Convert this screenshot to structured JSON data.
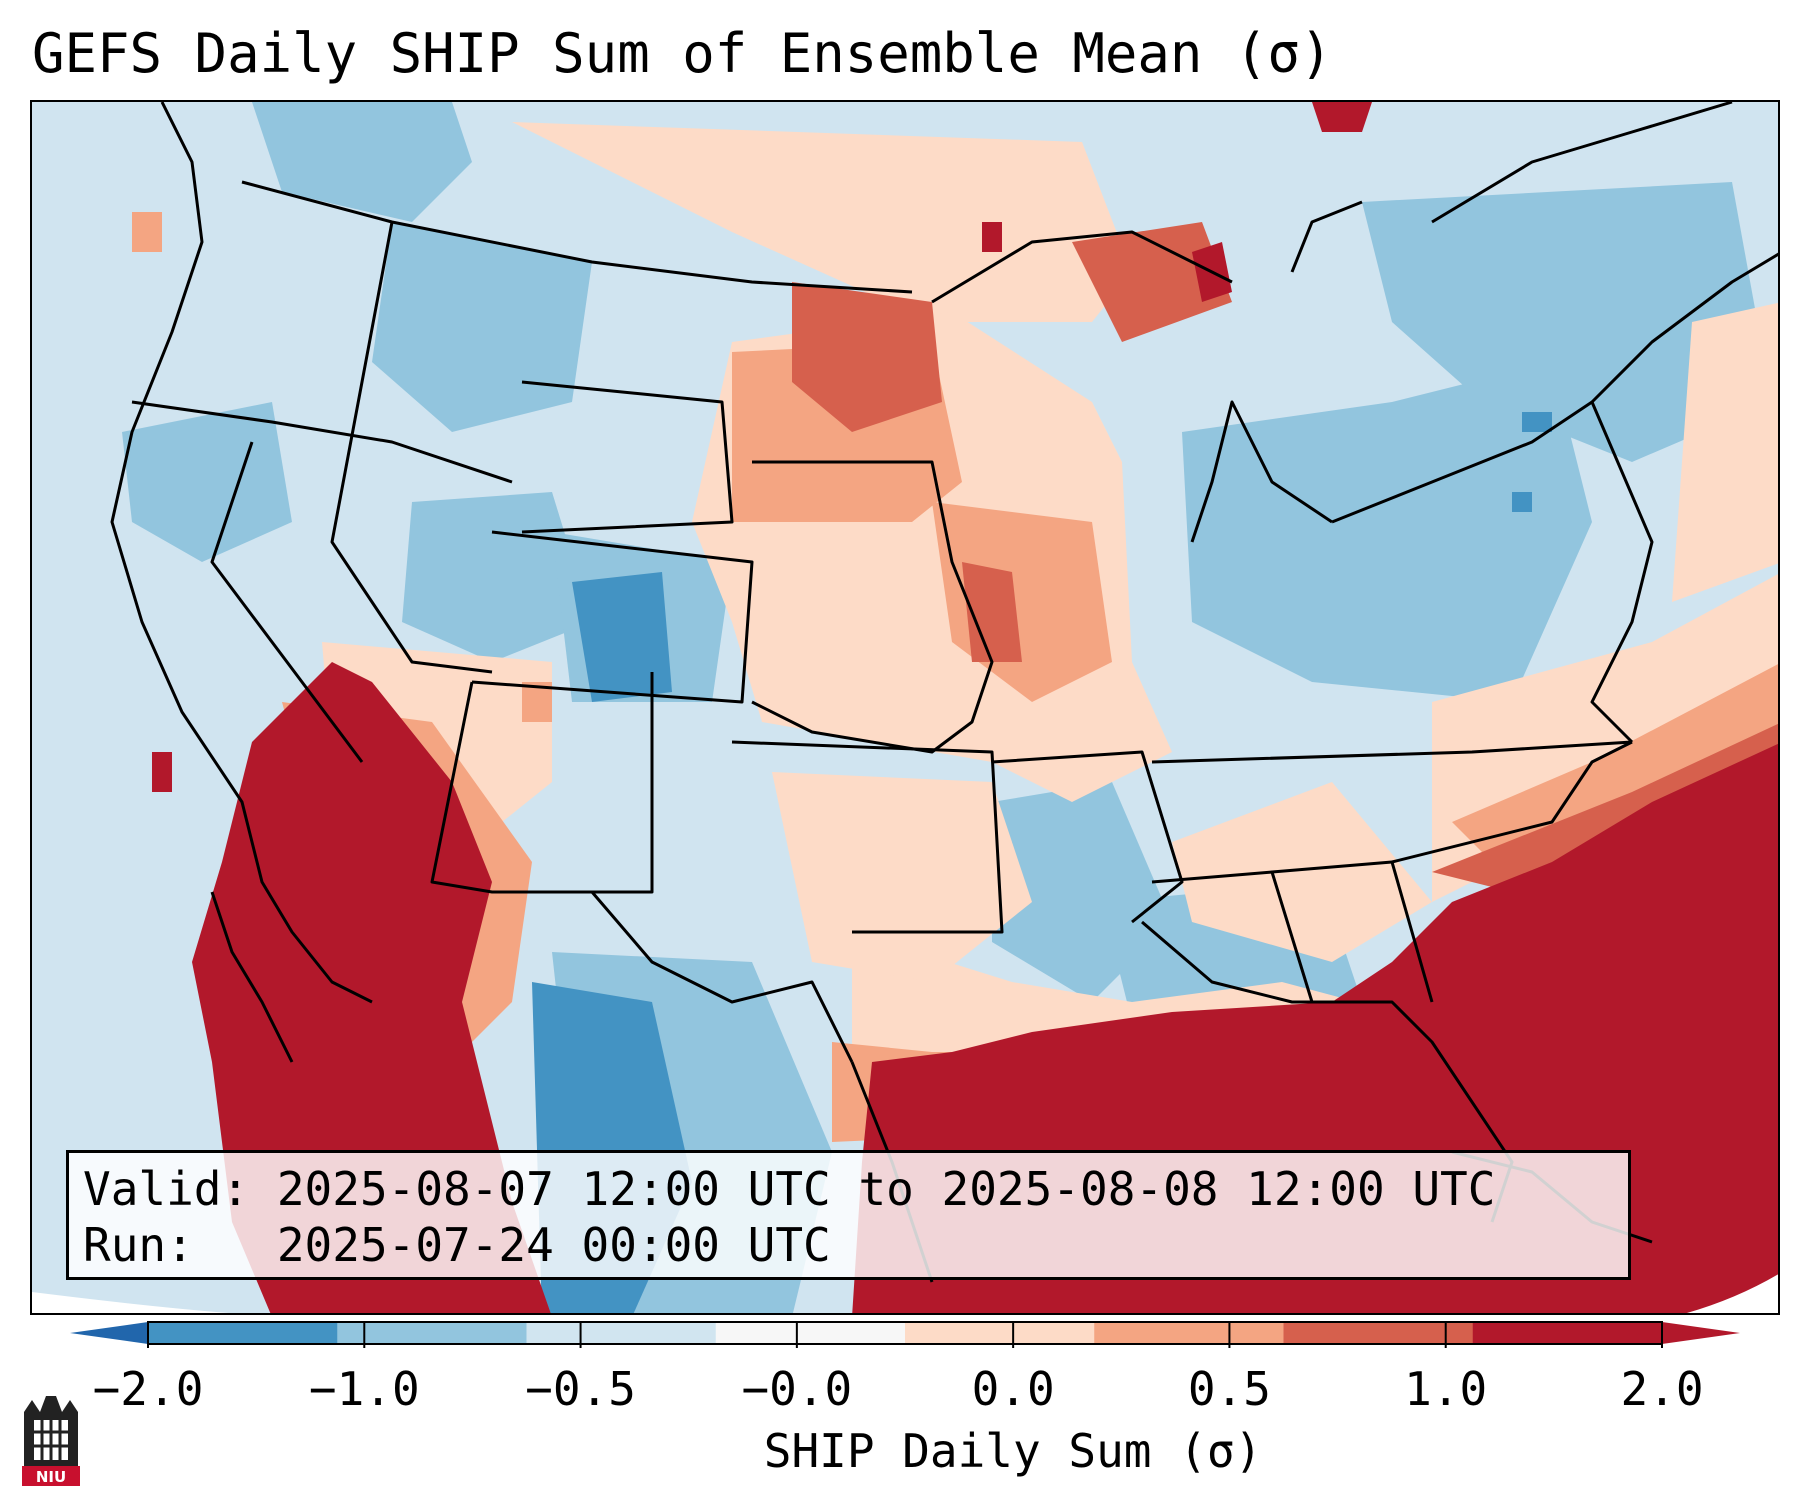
{
  "title": "GEFS Daily SHIP Sum of Ensemble Mean (σ)",
  "info": {
    "valid_line": "Valid: 2025-08-07 12:00 UTC to 2025-08-08 12:00 UTC",
    "run_line": "Run:   2025-07-24 00:00 UTC"
  },
  "colorbar": {
    "label": "SHIP Daily Sum (σ)",
    "ticks": [
      "−2.0",
      "−1.0",
      "−0.5",
      "−0.0",
      "0.0",
      "0.5",
      "1.0",
      "2.0"
    ],
    "colors": [
      "#4393c3",
      "#92c5de",
      "#d1e5f0",
      "#f7f7f7",
      "#fddbc7",
      "#f4a582",
      "#d6604d",
      "#b2182b"
    ],
    "extend_low_color": "#2166ac",
    "extend_high_color": "#b2182b"
  },
  "map": {
    "background": "#d0e4f0",
    "regions": [
      {
        "name": "northwest",
        "value": -0.5
      },
      {
        "name": "four-corners",
        "value": -1.0
      },
      {
        "name": "southwest-desert",
        "value": 2.0
      },
      {
        "name": "northern-plains",
        "value": 1.0
      },
      {
        "name": "midwest",
        "value": 0.5
      },
      {
        "name": "great-lakes-northeast",
        "value": -1.0
      },
      {
        "name": "gulf-of-mexico",
        "value": 2.0
      },
      {
        "name": "western-atlantic",
        "value": 2.0
      },
      {
        "name": "south-texas-mexico",
        "value": -1.0
      }
    ]
  },
  "logo_text": "NIU"
}
